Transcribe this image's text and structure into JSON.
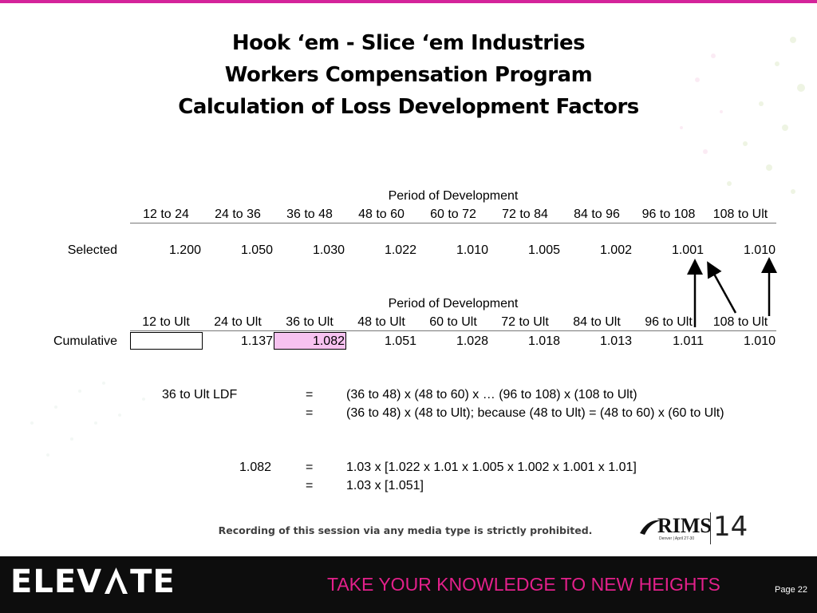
{
  "title": {
    "line1": "Hook ‘em - Slice ‘em Industries",
    "line2": "Workers  Compensation Program",
    "line3": "Calculation of Loss Development Factors"
  },
  "selected_table": {
    "caption": "Period of Development",
    "headers": [
      "12 to 24",
      "24 to 36",
      "36 to 48",
      "48 to 60",
      "60 to 72",
      "72 to 84",
      "84 to 96",
      "96 to 108",
      "108 to Ult"
    ],
    "row_label": "Selected",
    "values": [
      "1.200",
      "1.050",
      "1.030",
      "1.022",
      "1.010",
      "1.005",
      "1.002",
      "1.001",
      "1.010"
    ]
  },
  "cumulative_table": {
    "caption": "Period of Development",
    "headers": [
      "12 to Ult",
      "24 to Ult",
      "36 to Ult",
      "48 to Ult",
      "60 to Ult",
      "72 to Ult",
      "84 to Ult",
      "96 to Ult",
      "108 to Ult"
    ],
    "row_label": "Cumulative",
    "values": [
      "",
      "1.137",
      "1.082",
      "1.051",
      "1.028",
      "1.018",
      "1.013",
      "1.011",
      "1.010"
    ]
  },
  "formula": {
    "label": "36 to Ult LDF",
    "eq": "=",
    "line1": "(36 to 48) x (48 to 60) x … (96 to 108) x (108 to Ult)",
    "line2": "(36 to 48) x (48 to Ult); because (48 to Ult) = (48 to 60) x (60 to Ult)",
    "value": "1.082",
    "line3": "1.03 x [1.022 x 1.01 x 1.005 x 1.002 x 1.001 x 1.01]",
    "line4": "1.03 x [1.051]"
  },
  "notice": "Recording of this session via any media type is strictly prohibited.",
  "rims_logo": {
    "name": "RIMS",
    "number": "14",
    "small": "Denver | April 27-30"
  },
  "footer": {
    "brand": "ELEVATE",
    "brand_left": "ELEV",
    "brand_right": "TE",
    "tagline": "TAKE YOUR KNOWLEDGE TO NEW HEIGHTS",
    "page": "Page 22"
  },
  "colors": {
    "accent": "#d4249a",
    "highlight": "#f7c2f0",
    "footer_bg": "#0d0d0d"
  }
}
